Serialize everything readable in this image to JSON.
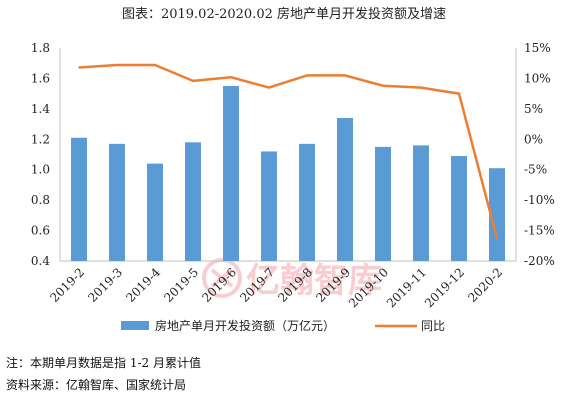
{
  "chart_data": {
    "type": "bar+line",
    "title": "图表：2019.02-2020.02 房地产单月开发投资额及增速",
    "categories": [
      "2019-2",
      "2019-3",
      "2019-4",
      "2019-5",
      "2019-6",
      "2019-7",
      "2019-8",
      "2019-9",
      "2019-10",
      "2019-11",
      "2019-12",
      "2020-2"
    ],
    "series": [
      {
        "name": "房地产单月开发投资额（万亿元）",
        "type": "bar",
        "axis": "left",
        "color": "#5b9bd5",
        "values": [
          1.21,
          1.17,
          1.04,
          1.18,
          1.55,
          1.12,
          1.17,
          1.34,
          1.15,
          1.16,
          1.09,
          1.01
        ]
      },
      {
        "name": "同比",
        "type": "line",
        "axis": "right",
        "color": "#ed7d31",
        "values": [
          11.8,
          12.2,
          12.2,
          9.6,
          10.2,
          8.5,
          10.5,
          10.5,
          8.8,
          8.5,
          7.5,
          -16.3
        ]
      }
    ],
    "left_axis": {
      "min": 0.4,
      "max": 1.8,
      "ticks": [
        "0.4",
        "0.6",
        "0.8",
        "1.0",
        "1.2",
        "1.4",
        "1.6",
        "1.8"
      ]
    },
    "right_axis": {
      "min": -20,
      "max": 15,
      "ticks": [
        "-20%",
        "-15%",
        "-10%",
        "-5%",
        "0%",
        "5%",
        "10%",
        "15%"
      ]
    },
    "legend_position": "bottom"
  },
  "watermark": {
    "text": "亿翰智库"
  },
  "notes": {
    "note": "注：本期单月数据是指 1-2 月累计值",
    "source": "资料来源：亿翰智库、国家统计局"
  }
}
